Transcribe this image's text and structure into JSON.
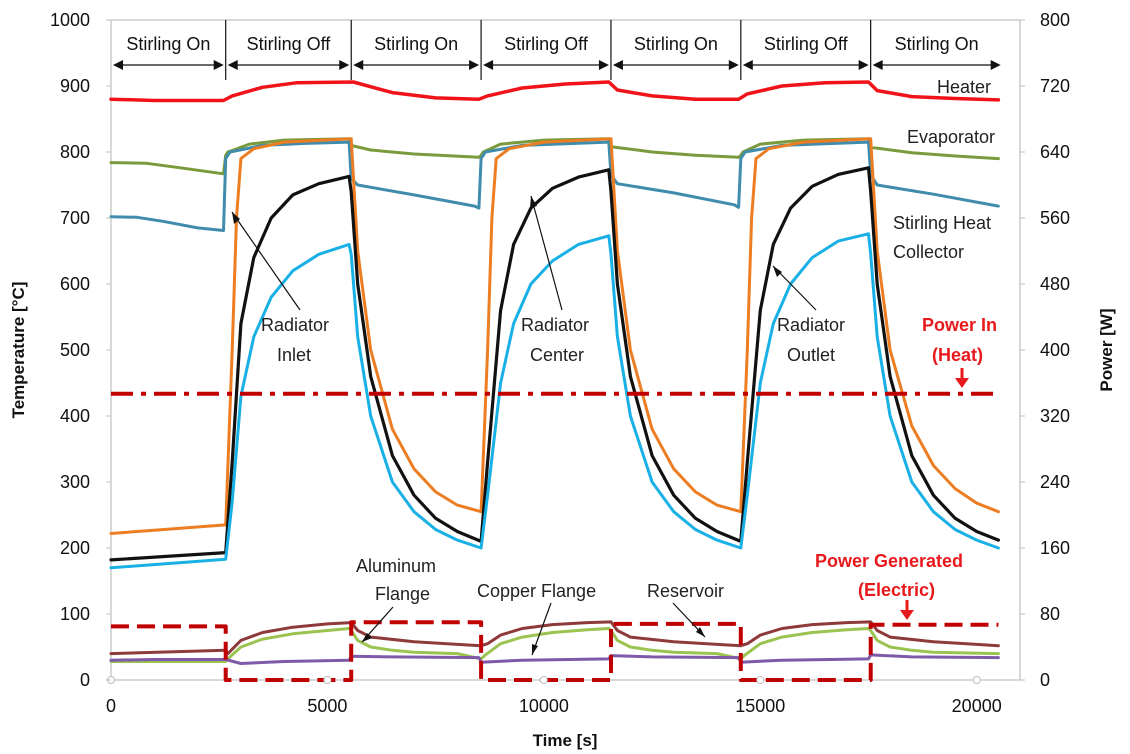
{
  "chart_data": {
    "type": "line",
    "title": "",
    "xlabel": "Time [s]",
    "ylabel": "Temperature [°C]",
    "y2label": "Power [W]",
    "xlim": [
      0,
      21000
    ],
    "ylim": [
      0,
      1000
    ],
    "y2lim": [
      0,
      800
    ],
    "x_ticks": [
      0,
      5000,
      10000,
      15000,
      20000
    ],
    "y_ticks": [
      0,
      100,
      200,
      300,
      400,
      500,
      600,
      700,
      800,
      900,
      1000
    ],
    "y2_ticks": [
      0,
      80,
      160,
      240,
      320,
      400,
      480,
      560,
      640,
      720,
      800
    ],
    "grid": false,
    "legend": "none (inline labels)",
    "phases": [
      {
        "label": "Stirling On",
        "start": 0,
        "end": 2650
      },
      {
        "label": "Stirling Off",
        "start": 2650,
        "end": 5550
      },
      {
        "label": "Stirling On",
        "start": 5550,
        "end": 8550
      },
      {
        "label": "Stirling Off",
        "start": 8550,
        "end": 11550
      },
      {
        "label": "Stirling On",
        "start": 11550,
        "end": 14550
      },
      {
        "label": "Stirling Off",
        "start": 14550,
        "end": 17550
      },
      {
        "label": "Stirling On",
        "start": 17550,
        "end": 20600
      }
    ],
    "series": [
      {
        "name": "Heater",
        "axis": "left",
        "color": "#f0141a",
        "style": "solid",
        "width": 3.5,
        "x": [
          0,
          1000,
          2600,
          2800,
          3500,
          4300,
          5600,
          6500,
          7500,
          8500,
          8700,
          9500,
          10500,
          11500,
          11700,
          12500,
          13500,
          14500,
          14700,
          15500,
          16500,
          17500,
          17700,
          18500,
          19500,
          20500
        ],
        "y": [
          880,
          878,
          878,
          885,
          898,
          905,
          906,
          890,
          882,
          880,
          885,
          897,
          903,
          906,
          894,
          885,
          880,
          880,
          888,
          900,
          905,
          906,
          893,
          884,
          881,
          879
        ]
      },
      {
        "name": "Evaporator",
        "axis": "left",
        "color": "#7a9a3c",
        "style": "solid",
        "width": 3,
        "x": [
          0,
          800,
          1600,
          2600,
          2650,
          2700,
          3200,
          4000,
          5500,
          5550,
          6000,
          7000,
          8500,
          8550,
          8600,
          9000,
          10000,
          11500,
          11550,
          12500,
          13500,
          14500,
          14550,
          14600,
          15000,
          16000,
          17500,
          17550,
          18500,
          19500,
          20500
        ],
        "y": [
          784,
          783,
          776,
          767,
          795,
          800,
          812,
          818,
          820,
          810,
          803,
          797,
          792,
          795,
          800,
          812,
          818,
          820,
          808,
          800,
          795,
          792,
          795,
          800,
          812,
          818,
          820,
          807,
          799,
          794,
          790
        ]
      },
      {
        "name": "Stirling Heat Collector",
        "axis": "left",
        "color": "#3f8cad",
        "style": "solid",
        "width": 3,
        "x": [
          0,
          600,
          1200,
          2000,
          2600,
          2650,
          2750,
          3500,
          4500,
          5500,
          5550,
          5700,
          7000,
          8400,
          8500,
          8550,
          8650,
          9500,
          11500,
          11550,
          11700,
          13000,
          14400,
          14500,
          14550,
          14650,
          15500,
          17500,
          17550,
          17700,
          19000,
          20500
        ],
        "y": [
          702,
          701,
          695,
          685,
          681,
          790,
          800,
          810,
          813,
          815,
          760,
          750,
          735,
          718,
          715,
          790,
          800,
          810,
          815,
          765,
          752,
          738,
          720,
          716,
          790,
          800,
          810,
          815,
          765,
          750,
          736,
          718
        ]
      },
      {
        "name": "Radiator Inlet",
        "axis": "left",
        "color": "#ec7d22",
        "style": "solid",
        "width": 3,
        "type_shape": "heatup",
        "baseline_x": [
          0,
          2650
        ],
        "baseline_y": [
          222,
          235
        ],
        "rise_x": [
          2650,
          2800,
          2900,
          3000,
          3300,
          4000,
          5550
        ],
        "rise_y": [
          235,
          500,
          700,
          790,
          805,
          815,
          820
        ],
        "decay_x": [
          5550,
          5700,
          6000,
          6500,
          7000,
          7500,
          8000,
          8550
        ],
        "decay_y": [
          820,
          650,
          500,
          380,
          320,
          285,
          265,
          255
        ],
        "x": [
          0,
          2650,
          2800,
          2900,
          3000,
          3300,
          4000,
          5550,
          5700,
          6000,
          6500,
          7000,
          7500,
          8000,
          8550,
          8700,
          8800,
          8900,
          9200,
          10000,
          11550,
          11700,
          12000,
          12500,
          13000,
          13500,
          14000,
          14550,
          14700,
          14800,
          14900,
          15200,
          16000,
          17550,
          17700,
          18000,
          18500,
          19000,
          19500,
          20000,
          20500
        ],
        "y": [
          222,
          235,
          500,
          700,
          790,
          805,
          815,
          820,
          650,
          500,
          380,
          320,
          285,
          265,
          255,
          500,
          700,
          790,
          805,
          815,
          820,
          650,
          500,
          380,
          320,
          285,
          265,
          255,
          500,
          700,
          790,
          805,
          815,
          820,
          650,
          500,
          385,
          325,
          290,
          268,
          255
        ]
      },
      {
        "name": "Radiator Center",
        "axis": "left",
        "color": "#111111",
        "style": "solid",
        "width": 3.2,
        "x": [
          0,
          2650,
          2800,
          3000,
          3300,
          3700,
          4200,
          4800,
          5500,
          5550,
          5700,
          6000,
          6500,
          7000,
          7500,
          8000,
          8550,
          8700,
          9000,
          9300,
          9700,
          10200,
          10800,
          11500,
          11550,
          11700,
          12000,
          12500,
          13000,
          13500,
          14000,
          14550,
          14700,
          15000,
          15300,
          15700,
          16200,
          16800,
          17500,
          17550,
          17700,
          18000,
          18500,
          19000,
          19500,
          20000,
          20500
        ],
        "y": [
          182,
          193,
          330,
          540,
          640,
          700,
          735,
          752,
          763,
          740,
          600,
          460,
          340,
          280,
          245,
          225,
          210,
          330,
          560,
          660,
          715,
          745,
          762,
          773,
          740,
          600,
          460,
          340,
          280,
          245,
          225,
          210,
          330,
          560,
          660,
          715,
          748,
          766,
          776,
          740,
          600,
          460,
          340,
          280,
          245,
          225,
          212
        ]
      },
      {
        "name": "Radiator Outlet",
        "axis": "left",
        "color": "#19b0e6",
        "style": "solid",
        "width": 3,
        "x": [
          0,
          2650,
          2800,
          3000,
          3300,
          3700,
          4200,
          4800,
          5500,
          5550,
          5700,
          6000,
          6500,
          7000,
          7500,
          8000,
          8550,
          8700,
          9000,
          9300,
          9700,
          10200,
          10800,
          11500,
          11550,
          11700,
          12000,
          12500,
          13000,
          13500,
          14000,
          14550,
          14700,
          15000,
          15300,
          15700,
          16200,
          16800,
          17500,
          17550,
          17700,
          18000,
          18500,
          19000,
          19500,
          20000,
          20500
        ],
        "y": [
          170,
          183,
          270,
          430,
          520,
          580,
          620,
          645,
          660,
          645,
          520,
          400,
          300,
          255,
          228,
          212,
          200,
          280,
          450,
          540,
          600,
          635,
          660,
          673,
          645,
          520,
          400,
          300,
          255,
          228,
          212,
          200,
          280,
          450,
          540,
          600,
          640,
          665,
          676,
          645,
          520,
          400,
          300,
          255,
          228,
          212,
          200
        ]
      },
      {
        "name": "Aluminum Flange",
        "axis": "left",
        "color": "#9ac350",
        "style": "solid",
        "width": 3,
        "x": [
          0,
          2650,
          2750,
          3000,
          3500,
          4200,
          5000,
          5500,
          5550,
          5700,
          6000,
          6500,
          7000,
          8000,
          8550,
          8650,
          9000,
          9500,
          10200,
          11000,
          11500,
          11550,
          11700,
          12000,
          12500,
          13000,
          14000,
          14550,
          14650,
          15000,
          15500,
          16200,
          17000,
          17500,
          17550,
          17700,
          18000,
          18500,
          19000,
          20500
        ],
        "y": [
          28,
          28,
          35,
          50,
          62,
          70,
          75,
          78,
          75,
          60,
          50,
          45,
          42,
          40,
          32,
          38,
          55,
          65,
          72,
          76,
          78,
          75,
          60,
          50,
          45,
          42,
          40,
          32,
          38,
          55,
          65,
          72,
          76,
          78,
          75,
          60,
          50,
          45,
          42,
          40
        ]
      },
      {
        "name": "Reservoir",
        "axis": "left",
        "color": "#8f3a3a",
        "style": "solid",
        "width": 3,
        "x": [
          0,
          2650,
          2700,
          3000,
          3500,
          4200,
          5000,
          5550,
          5700,
          6000,
          7000,
          8000,
          8550,
          8700,
          9000,
          9500,
          10200,
          11000,
          11550,
          11700,
          12000,
          13000,
          14000,
          14550,
          14700,
          15000,
          15500,
          16200,
          17000,
          17550,
          17700,
          18000,
          19000,
          20000,
          20500
        ],
        "y": [
          40,
          45,
          40,
          60,
          72,
          80,
          85,
          87,
          75,
          65,
          58,
          54,
          52,
          55,
          68,
          78,
          84,
          87,
          88,
          75,
          65,
          58,
          54,
          52,
          55,
          68,
          78,
          84,
          87,
          88,
          75,
          65,
          58,
          54,
          52
        ]
      },
      {
        "name": "Copper Flange",
        "axis": "left",
        "color": "#7e5aa8",
        "style": "solid",
        "width": 3,
        "x": [
          0,
          1000,
          2650,
          3000,
          4000,
          5500,
          5550,
          6500,
          8500,
          8550,
          9500,
          11500,
          11550,
          12500,
          14500,
          14550,
          15500,
          17500,
          17550,
          18500,
          20500
        ],
        "y": [
          30,
          31,
          31,
          25,
          28,
          30,
          36,
          35,
          34,
          27,
          30,
          32,
          37,
          35,
          34,
          27,
          30,
          32,
          38,
          35,
          34
        ]
      },
      {
        "name": "Power In (Heat)",
        "axis": "right",
        "color": "#c00000",
        "style": "dashdot",
        "width": 4,
        "x": [
          0,
          20500
        ],
        "y": [
          347,
          347
        ]
      },
      {
        "name": "Power Generated (Electric)",
        "axis": "right",
        "color": "#c00000",
        "style": "dash",
        "width": 4,
        "x": [
          0,
          2650,
          2650,
          5550,
          5550,
          8550,
          8550,
          11550,
          11550,
          14550,
          14550,
          17550,
          17550,
          20500
        ],
        "y": [
          65,
          65,
          0,
          0,
          70,
          70,
          0,
          0,
          68,
          68,
          0,
          0,
          67,
          67
        ]
      }
    ],
    "annotations": {
      "heater": "Heater",
      "evaporator": "Evaporator",
      "collector_1": "Stirling Heat",
      "collector_2": "Collector",
      "rad_inlet_1": "Radiator",
      "rad_inlet_2": "Inlet",
      "rad_center_1": "Radiator",
      "rad_center_2": "Center",
      "rad_outlet_1": "Radiator",
      "rad_outlet_2": "Outlet",
      "power_in_1": "Power In",
      "power_in_2": "(Heat)",
      "al_flange_1": "Aluminum",
      "al_flange_2": "Flange",
      "cu_flange": "Copper Flange",
      "reservoir": "Reservoir",
      "power_gen_1": "Power Generated",
      "power_gen_2": "(Electric)"
    }
  }
}
